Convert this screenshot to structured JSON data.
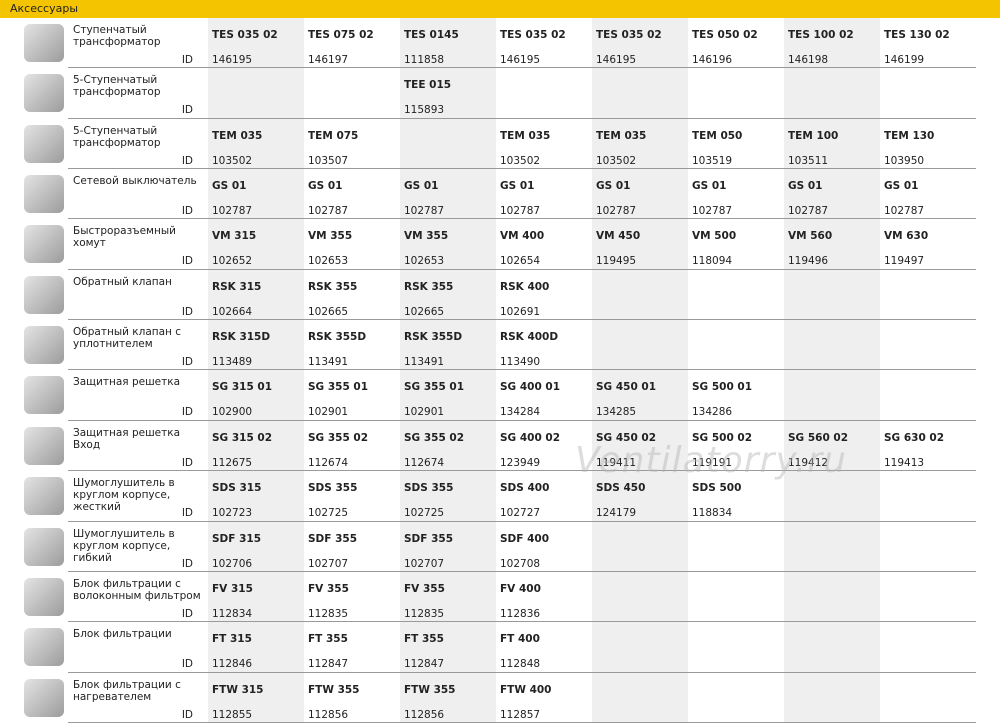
{
  "header": {
    "title": "Аксессуары"
  },
  "watermark": "Ventilatorry.ru",
  "table": {
    "id_label": "ID",
    "rows": [
      {
        "label": "Ступенчатый трансформатор",
        "cells": [
          {
            "model": "TES 035 02",
            "id": "146195"
          },
          {
            "model": "TES 075 02",
            "id": "146197"
          },
          {
            "model": "TES 0145",
            "id": "111858"
          },
          {
            "model": "TES 035 02",
            "id": "146195"
          },
          {
            "model": "TES 035 02",
            "id": "146195"
          },
          {
            "model": "TES 050 02",
            "id": "146196"
          },
          {
            "model": "TES 100 02",
            "id": "146198"
          },
          {
            "model": "TES 130 02",
            "id": "146199"
          }
        ]
      },
      {
        "label": "5-Ступенчатый трансформатор",
        "cells": [
          null,
          null,
          {
            "model": "TEE 015",
            "id": "115893"
          }
        ]
      },
      {
        "label": "5-Ступенчатый трансформатор",
        "cells": [
          {
            "model": "TEM 035",
            "id": "103502"
          },
          {
            "model": "TEM 075",
            "id": "103507"
          },
          null,
          {
            "model": "TEM 035",
            "id": "103502"
          },
          {
            "model": "TEM 035",
            "id": "103502"
          },
          {
            "model": "TEM 050",
            "id": "103519"
          },
          {
            "model": "TEM 100",
            "id": "103511"
          },
          {
            "model": "TEM 130",
            "id": "103950"
          }
        ]
      },
      {
        "label": "Сетевой выключатель",
        "cells": [
          {
            "model": "GS 01",
            "id": "102787"
          },
          {
            "model": "GS 01",
            "id": "102787"
          },
          {
            "model": "GS 01",
            "id": "102787"
          },
          {
            "model": "GS 01",
            "id": "102787"
          },
          {
            "model": "GS 01",
            "id": "102787"
          },
          {
            "model": "GS 01",
            "id": "102787"
          },
          {
            "model": "GS 01",
            "id": "102787"
          },
          {
            "model": "GS 01",
            "id": "102787"
          }
        ]
      },
      {
        "label": "Быстроразъемный хомут",
        "cells": [
          {
            "model": "VM 315",
            "id": "102652"
          },
          {
            "model": "VM 355",
            "id": "102653"
          },
          {
            "model": "VM 355",
            "id": "102653"
          },
          {
            "model": "VM 400",
            "id": "102654"
          },
          {
            "model": "VM 450",
            "id": "119495"
          },
          {
            "model": "VM 500",
            "id": "118094"
          },
          {
            "model": "VM 560",
            "id": "119496"
          },
          {
            "model": "VM 630",
            "id": "119497"
          }
        ]
      },
      {
        "label": "Обратный клапан",
        "cells": [
          {
            "model": "RSK 315",
            "id": "102664"
          },
          {
            "model": "RSK 355",
            "id": "102665"
          },
          {
            "model": "RSK 355",
            "id": "102665"
          },
          {
            "model": "RSK 400",
            "id": "102691"
          }
        ]
      },
      {
        "label": "Обратный клапан с уплотнителем",
        "cells": [
          {
            "model": "RSK 315D",
            "id": "113489"
          },
          {
            "model": "RSK 355D",
            "id": "113491"
          },
          {
            "model": "RSK 355D",
            "id": "113491"
          },
          {
            "model": "RSK 400D",
            "id": "113490"
          }
        ]
      },
      {
        "label": "Защитная решетка",
        "cells": [
          {
            "model": "SG 315 01",
            "id": "102900"
          },
          {
            "model": "SG 355 01",
            "id": "102901"
          },
          {
            "model": "SG 355 01",
            "id": "102901"
          },
          {
            "model": "SG 400 01",
            "id": "134284"
          },
          {
            "model": "SG 450 01",
            "id": "134285"
          },
          {
            "model": "SG 500 01",
            "id": "134286"
          }
        ]
      },
      {
        "label": "Защитная решетка Вход",
        "cells": [
          {
            "model": "SG 315 02",
            "id": "112675"
          },
          {
            "model": "SG 355 02",
            "id": "112674"
          },
          {
            "model": "SG 355 02",
            "id": "112674"
          },
          {
            "model": "SG 400 02",
            "id": "123949"
          },
          {
            "model": "SG 450 02",
            "id": "119411"
          },
          {
            "model": "SG 500 02",
            "id": "119191"
          },
          {
            "model": "SG 560 02",
            "id": "119412"
          },
          {
            "model": "SG 630 02",
            "id": "119413"
          }
        ]
      },
      {
        "label": "Шумоглушитель в круглом корпусе, жесткий",
        "cells": [
          {
            "model": "SDS 315",
            "id": "102723"
          },
          {
            "model": "SDS 355",
            "id": "102725"
          },
          {
            "model": "SDS 355",
            "id": "102725"
          },
          {
            "model": "SDS 400",
            "id": "102727"
          },
          {
            "model": "SDS 450",
            "id": "124179"
          },
          {
            "model": "SDS 500",
            "id": "118834"
          }
        ]
      },
      {
        "label": "Шумоглушитель в круглом корпусе, гибкий",
        "cells": [
          {
            "model": "SDF 315",
            "id": "102706"
          },
          {
            "model": "SDF 355",
            "id": "102707"
          },
          {
            "model": "SDF 355",
            "id": "102707"
          },
          {
            "model": "SDF 400",
            "id": "102708"
          }
        ]
      },
      {
        "label": "Блок фильтрации с волоконным фильтром",
        "cells": [
          {
            "model": "FV 315",
            "id": "112834"
          },
          {
            "model": "FV 355",
            "id": "112835"
          },
          {
            "model": "FV 355",
            "id": "112835"
          },
          {
            "model": "FV 400",
            "id": "112836"
          }
        ]
      },
      {
        "label": "Блок фильтрации",
        "cells": [
          {
            "model": "FT 315",
            "id": "112846"
          },
          {
            "model": "FT 355",
            "id": "112847"
          },
          {
            "model": "FT 355",
            "id": "112847"
          },
          {
            "model": "FT 400",
            "id": "112848"
          }
        ]
      },
      {
        "label": "Блок фильтрации с нагревателем",
        "cells": [
          {
            "model": "FTW 315",
            "id": "112855"
          },
          {
            "model": "FTW 355",
            "id": "112856"
          },
          {
            "model": "FTW 355",
            "id": "112856"
          },
          {
            "model": "FTW 400",
            "id": "112857"
          }
        ]
      }
    ]
  }
}
